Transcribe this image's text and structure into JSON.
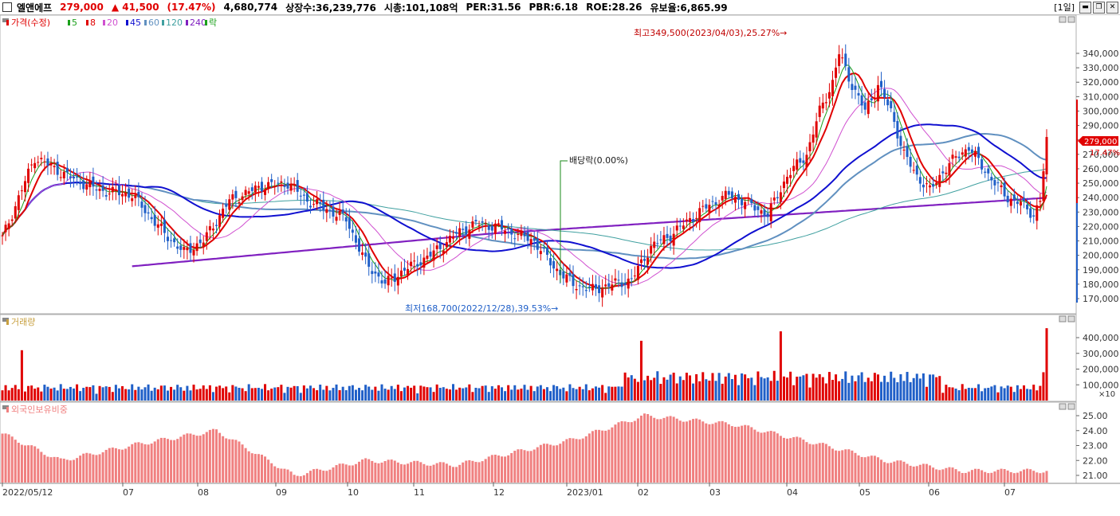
{
  "header": {
    "name": "엘앤에프",
    "price": "279,000",
    "change": "▲ 41,500",
    "change_pct": "(17.47%)",
    "volume": "4,680,774",
    "shares": "상장수:36,239,776",
    "mcap": "시총:101,108억",
    "per": "PER:31.56",
    "pbr": "PBR:6.18",
    "roe": "ROE:28.26",
    "holdings": "유보율:6,865.99",
    "period": "[1일]"
  },
  "legend": {
    "price_label": "가격(수정)",
    "ma": [
      "5",
      "8",
      "20",
      "45",
      "60",
      "120",
      "240"
    ],
    "ex_label": "락",
    "volume_label": "거래량",
    "foreign_label": "외국인보유비중"
  },
  "annotations": {
    "high": "최고349,500(2023/04/03),25.27%→",
    "low": "최저168,700(2022/12/28),39.53%→",
    "dividend": "배당락(0.00%)",
    "current_price": "279,000",
    "current_pct": "17.47%",
    "volume_unit": "×10"
  },
  "colors": {
    "up": "#e00000",
    "down": "#1f5fc8",
    "ma5": "#1aa01a",
    "ma8": "#e00000",
    "ma20": "#d050d0",
    "ma45": "#1010d0",
    "ma60": "#6090c0",
    "ma120": "#40a0a0",
    "ma240": "#8020c0",
    "foreign": "#f08080"
  },
  "chart_data": [
    {
      "type": "candlestick",
      "title": "가격(수정)",
      "x_ticks": [
        "2022/05/12",
        "07",
        "08",
        "09",
        "10",
        "11",
        "12",
        "2023/01",
        "02",
        "03",
        "04",
        "05",
        "06",
        "07"
      ],
      "y_ticks": [
        "340,000",
        "330,000",
        "320,000",
        "310,000",
        "300,000",
        "290,000",
        "280,000",
        "270,000",
        "260,000",
        "250,000",
        "240,000",
        "230,000",
        "220,000",
        "210,000",
        "200,000",
        "190,000",
        "180,000",
        "170,000"
      ],
      "ylim": [
        165000,
        355000
      ],
      "series_close_approx": [
        {
          "date": "2022/05/12",
          "close": 212000
        },
        {
          "date": "2022/06",
          "close": 270000
        },
        {
          "date": "2022/07",
          "close": 200000
        },
        {
          "date": "2022/08",
          "close": 250000
        },
        {
          "date": "2022/09",
          "close": 230000
        },
        {
          "date": "2022/10",
          "close": 180000
        },
        {
          "date": "2022/11",
          "close": 222000
        },
        {
          "date": "2022/12",
          "close": 200000
        },
        {
          "date": "2022/12/28",
          "close": 168700
        },
        {
          "date": "2023/01",
          "close": 182000
        },
        {
          "date": "2023/02",
          "close": 230000
        },
        {
          "date": "2023/03",
          "close": 240000
        },
        {
          "date": "2023/04/03",
          "close": 349500
        },
        {
          "date": "2023/05",
          "close": 245000
        },
        {
          "date": "2023/06",
          "close": 275000
        },
        {
          "date": "2023/07",
          "close": 237500
        },
        {
          "date": "2023/07 last",
          "close": 279000
        }
      ],
      "high": 349500,
      "low": 168700,
      "last": 279000
    },
    {
      "type": "bar",
      "title": "거래량",
      "y_ticks": [
        "400,000",
        "300,000",
        "200,000",
        "100,000"
      ],
      "unit": "×10",
      "ylim": [
        0,
        480000
      ],
      "peaks": [
        {
          "date": "2022/05",
          "value": 320000
        },
        {
          "date": "2023/02",
          "value": 380000
        },
        {
          "date": "2023/03",
          "value": 440000
        },
        {
          "date": "2023/07 last",
          "value": 460000
        }
      ]
    },
    {
      "type": "bar",
      "title": "외국인보유비중",
      "y_ticks": [
        "25.00",
        "24.00",
        "23.00",
        "22.00",
        "21.00"
      ],
      "ylim": [
        20.6,
        25.4
      ],
      "approx": [
        {
          "date": "2022/06",
          "value": 23.8
        },
        {
          "date": "2022/07",
          "value": 22.0
        },
        {
          "date": "2022/08",
          "value": 23.1
        },
        {
          "date": "2022/08 end",
          "value": 24.0
        },
        {
          "date": "2022/10",
          "value": 21.0
        },
        {
          "date": "2022/11",
          "value": 22.0
        },
        {
          "date": "2023/01",
          "value": 21.7
        },
        {
          "date": "2023/02",
          "value": 23.4
        },
        {
          "date": "2023/03",
          "value": 25.0
        },
        {
          "date": "2023/04",
          "value": 24.4
        },
        {
          "date": "2023/05",
          "value": 23.2
        },
        {
          "date": "2023/06",
          "value": 22.0
        },
        {
          "date": "2023/07",
          "value": 21.3
        }
      ]
    }
  ]
}
